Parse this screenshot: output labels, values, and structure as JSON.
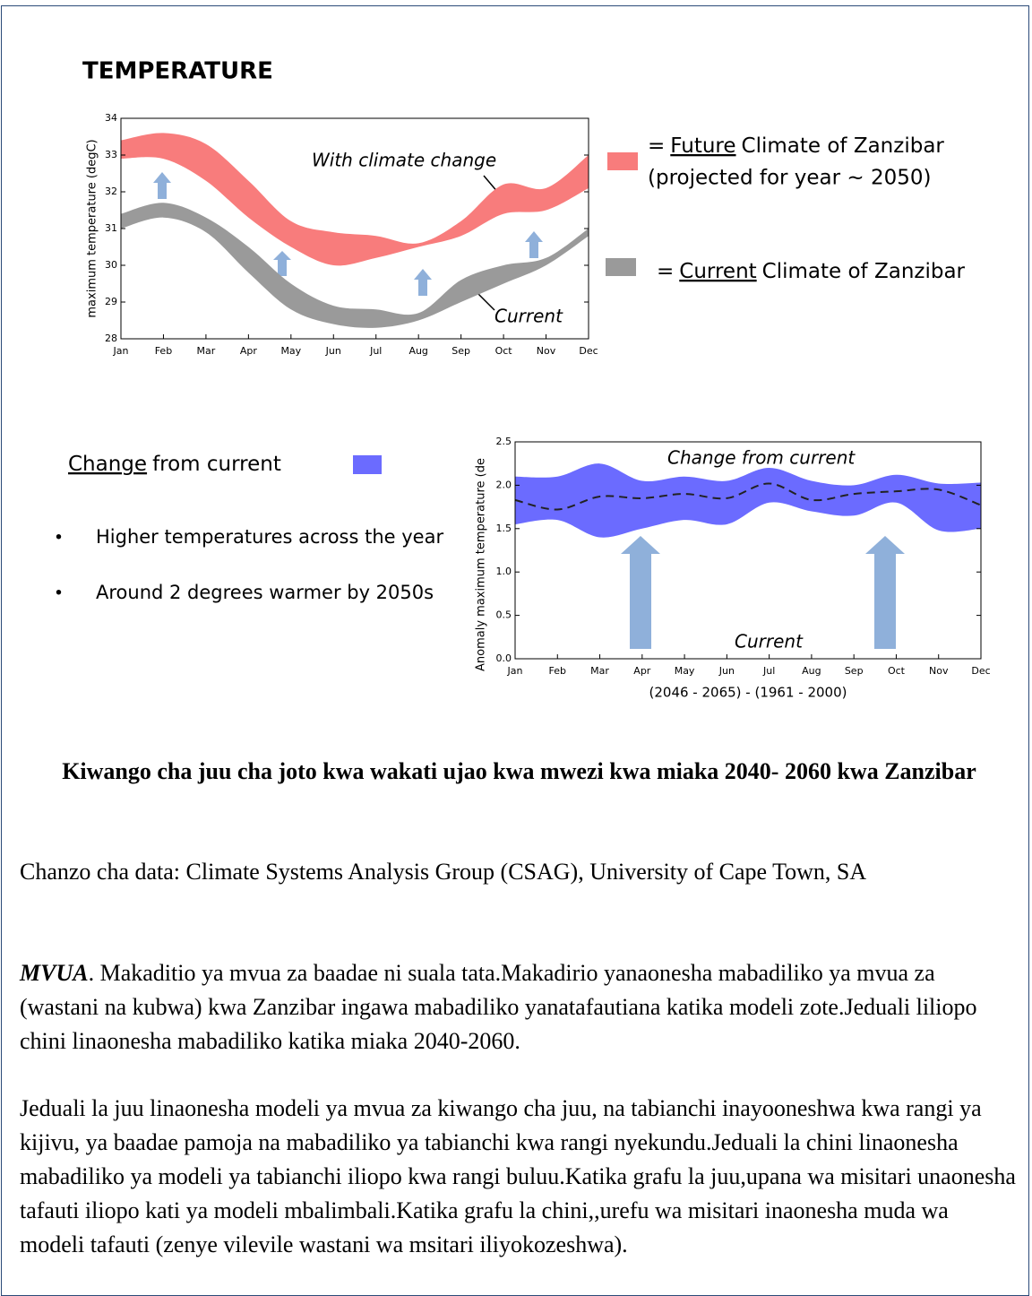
{
  "heading": "TEMPERATURE",
  "chart_data": [
    {
      "type": "band",
      "y_label": "maximum temperature (degC)",
      "categories": [
        "Jan",
        "Feb",
        "Mar",
        "Apr",
        "May",
        "Jun",
        "Jul",
        "Aug",
        "Sep",
        "Oct",
        "Nov",
        "Dec"
      ],
      "ylim": [
        28,
        34
      ],
      "yticks": [
        28,
        29,
        30,
        31,
        32,
        33,
        34
      ],
      "annotations": [
        "With climate change",
        "Current"
      ],
      "series": [
        {
          "name": "Future",
          "color": "#f87c7c",
          "legend_prefix": "=",
          "legend_suffix": "Climate of Zanzibar",
          "legend_note": "(projected for year ~ 2050)",
          "upper": [
            33.4,
            33.6,
            33.3,
            32.3,
            31.2,
            30.9,
            30.8,
            30.6,
            31.2,
            32.2,
            32.1,
            33.0
          ],
          "lower": [
            32.9,
            32.9,
            32.3,
            31.3,
            30.5,
            30.0,
            30.2,
            30.5,
            30.8,
            31.4,
            31.5,
            32.1
          ]
        },
        {
          "name": "Current",
          "color": "#9a9a9a",
          "legend_prefix": "=",
          "legend_suffix": "Climate of Zanzibar",
          "upper": [
            31.4,
            31.7,
            31.3,
            30.5,
            29.5,
            28.9,
            28.8,
            28.7,
            29.6,
            30.0,
            30.2,
            31.0
          ],
          "lower": [
            31.0,
            31.3,
            30.9,
            29.8,
            28.8,
            28.4,
            28.3,
            28.5,
            29.0,
            29.5,
            30.0,
            30.8
          ]
        }
      ]
    },
    {
      "type": "band",
      "y_label": "Anomaly maximum temperature (de",
      "x_label": "(2046 - 2065) - (1961 - 2000)",
      "categories": [
        "Jan",
        "Feb",
        "Mar",
        "Apr",
        "May",
        "Jun",
        "Jul",
        "Aug",
        "Sep",
        "Oct",
        "Nov",
        "Dec"
      ],
      "ylim": [
        0,
        2.5
      ],
      "yticks": [
        {
          "value": 0,
          "label": "0.0"
        },
        {
          "value": 0.5,
          "label": "0.5"
        },
        {
          "value": 1,
          "label": "1.0"
        },
        {
          "value": 1.5,
          "label": "1.5"
        },
        {
          "value": 2,
          "label": "2.0"
        },
        {
          "value": 2.5,
          "label": "2.5"
        }
      ],
      "annotations": [
        "Change from current",
        "Current"
      ],
      "series": [
        {
          "name": "Change",
          "color": "#6b6bff",
          "legend_suffix": "from current",
          "upper": [
            2.1,
            2.1,
            2.25,
            2.05,
            2.1,
            2.05,
            2.2,
            2.05,
            2.0,
            2.12,
            2.02,
            2.03
          ],
          "lower": [
            1.55,
            1.6,
            1.4,
            1.5,
            1.6,
            1.55,
            1.8,
            1.7,
            1.65,
            1.8,
            1.48,
            1.5
          ],
          "mean": [
            1.83,
            1.72,
            1.87,
            1.85,
            1.9,
            1.85,
            2.02,
            1.83,
            1.9,
            1.93,
            1.95,
            1.77
          ]
        }
      ]
    }
  ],
  "bullets": [
    "Higher temperatures across the year",
    "Around 2 degrees warmer by 2050s"
  ],
  "caption": "Kiwango cha juu cha joto kwa wakati ujao kwa mwezi kwa miaka 2040- 2060 kwa Zanzibar",
  "source": "Chanzo cha data: Climate Systems Analysis Group (CSAG), University of Cape Town, SA",
  "paragraphs": [
    {
      "lead": "MVUA",
      "text": ". Makaditio ya mvua za baadae ni suala tata.Makadirio yanaonesha mabadiliko ya mvua za (wastani na kubwa) kwa Zanzibar ingawa mabadiliko yanatafautiana katika modeli zote.Jeduali liliopo chini linaonesha mabadiliko katika miaka 2040-2060."
    },
    {
      "text": "Jeduali la juu linaonesha modeli ya mvua za kiwango cha juu, na tabianchi inayooneshwa kwa rangi ya kijivu, ya baadae pamoja na mabadiliko ya tabianchi kwa rangi nyekundu.Jeduali la chini linaonesha mabadiliko ya modeli ya tabianchi iliopo kwa rangi buluu.Katika grafu la juu,upana wa misitari unaonesha tafauti iliopo kati ya modeli mbalimbali.Katika grafu la chini,,urefu wa misitari inaonesha muda wa modeli tafauti (zenye vilevile wastani wa msitari iliyokozeshwa)."
    }
  ]
}
